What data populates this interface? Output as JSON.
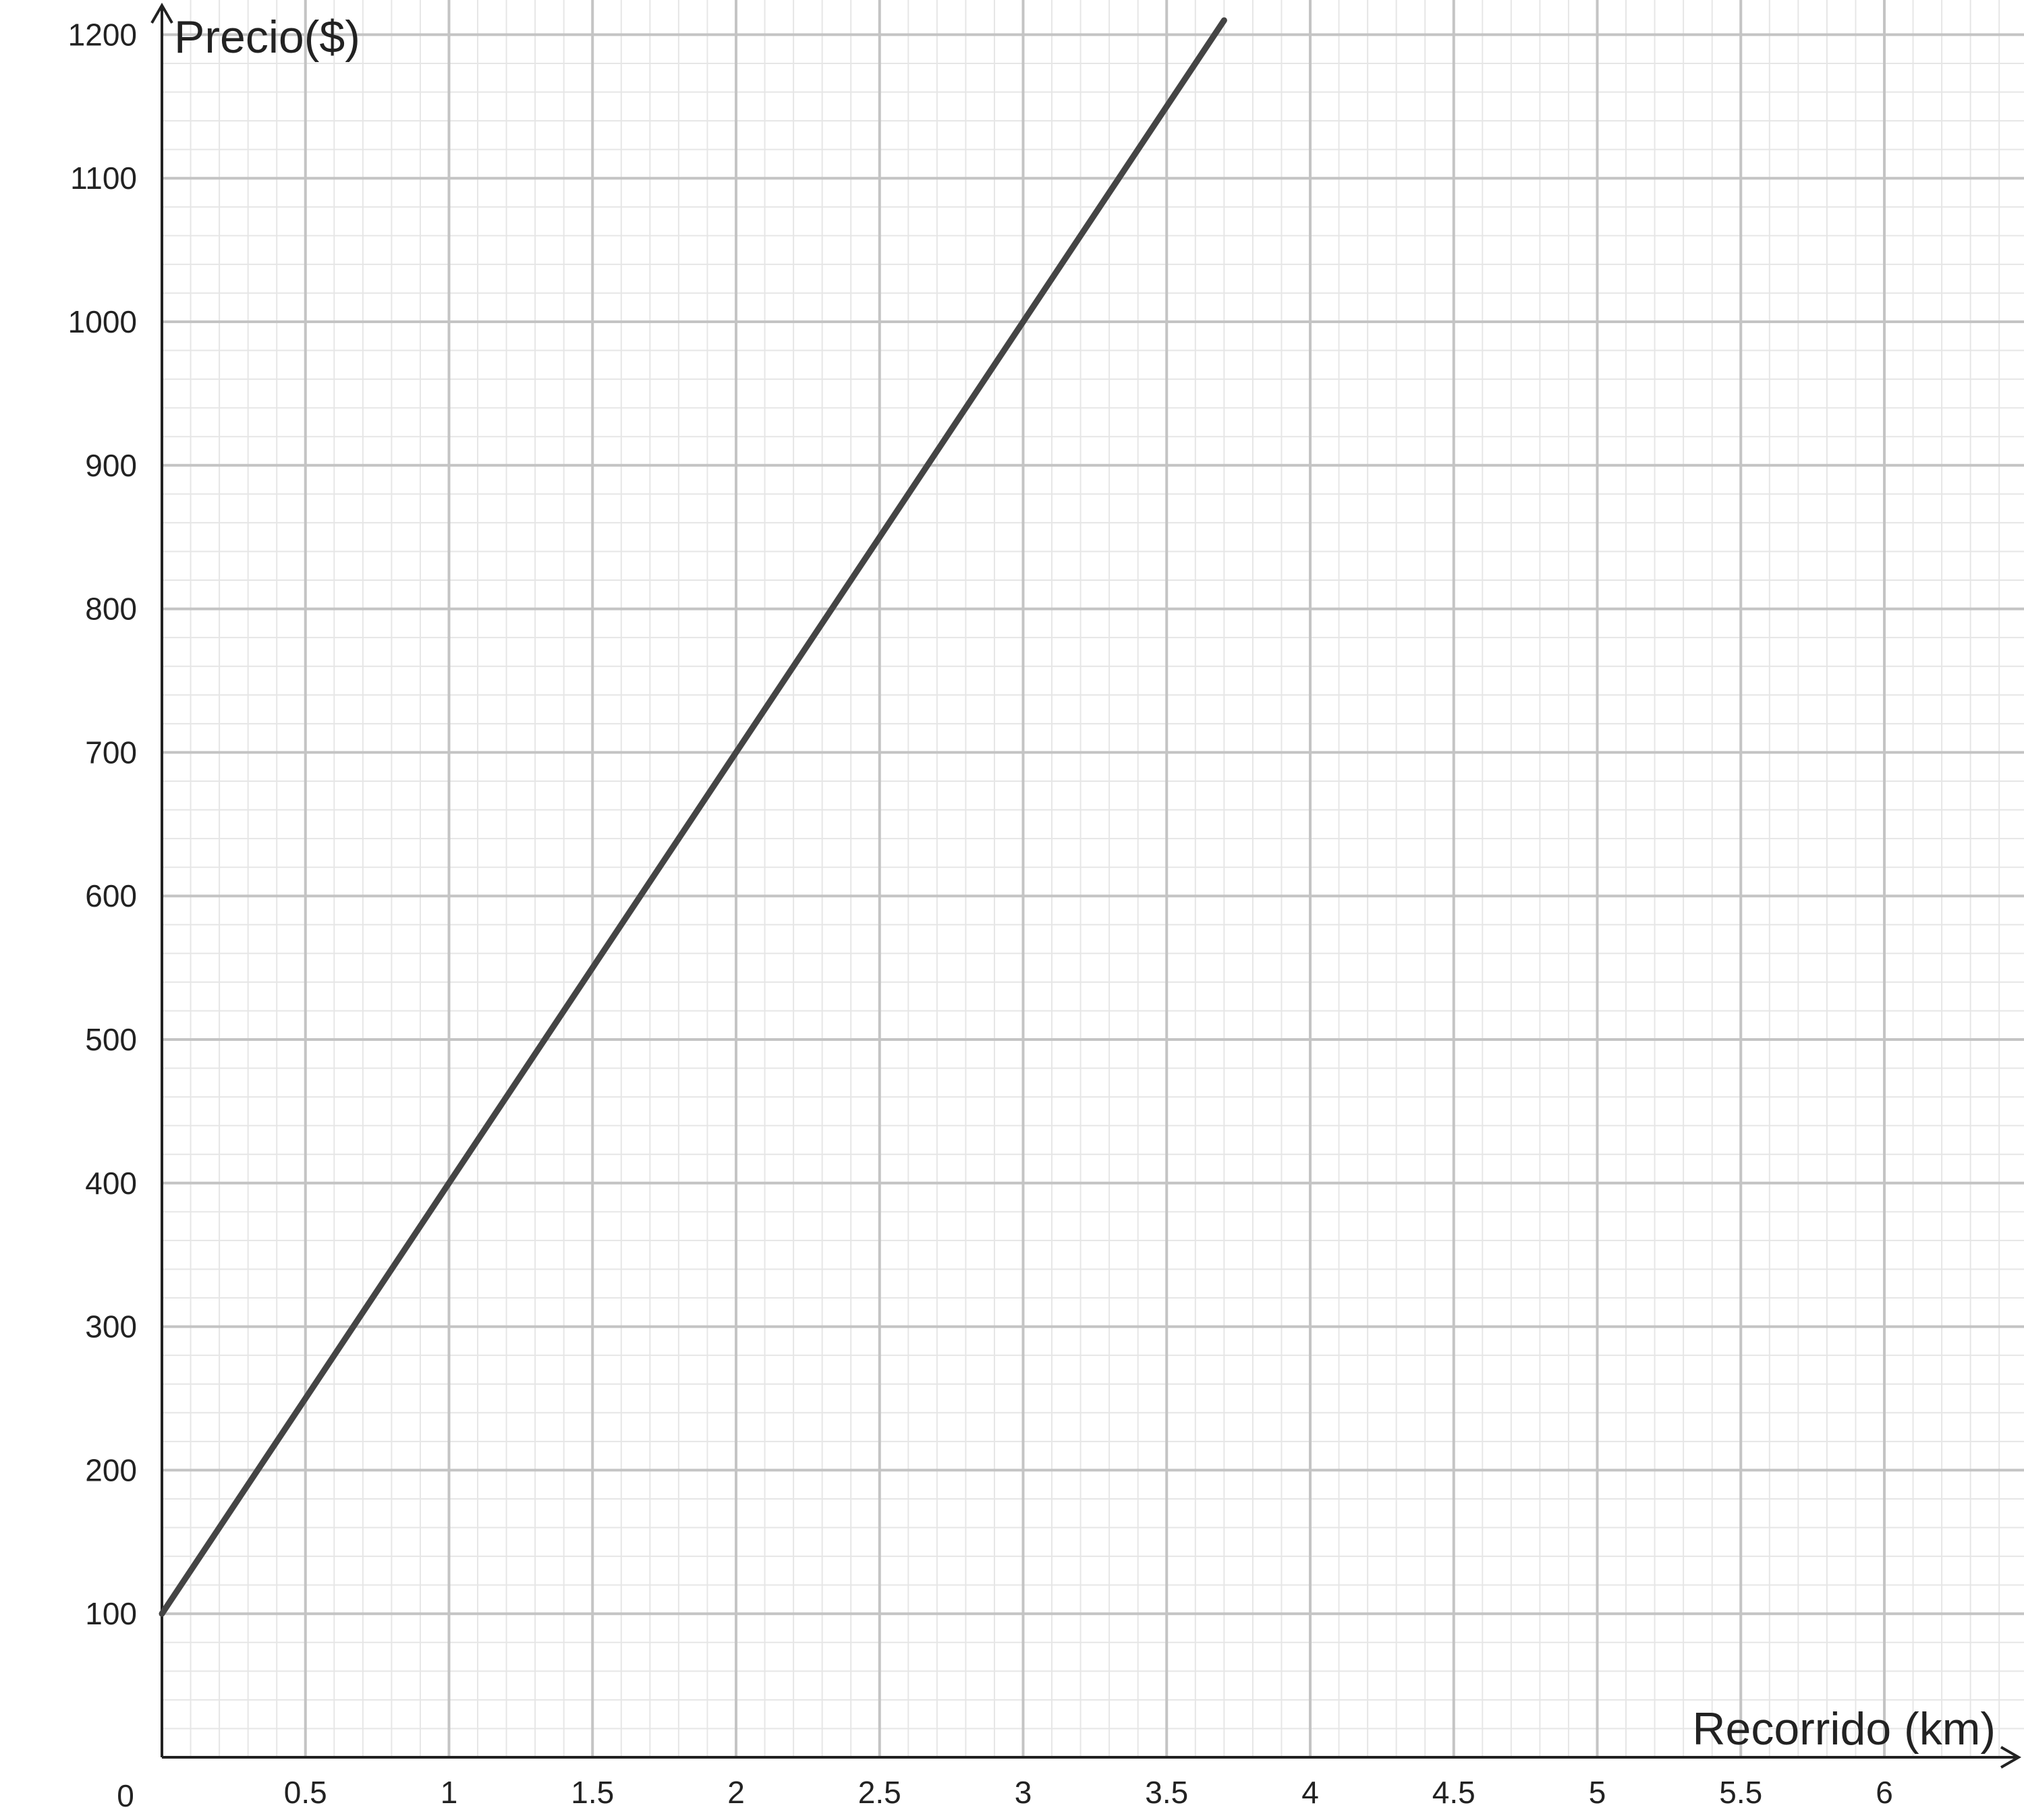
{
  "chart_data": {
    "type": "line",
    "title": "",
    "xlabel": "Recorrido (km)",
    "ylabel": "Precio($)",
    "xlim": [
      0,
      6.5
    ],
    "ylim": [
      0,
      1215
    ],
    "grid": true,
    "origin_label": "0",
    "x_ticks": [
      "0.5",
      "1",
      "1.5",
      "2",
      "2.5",
      "3",
      "3.5",
      "4",
      "4.5",
      "5",
      "5.5",
      "6"
    ],
    "y_ticks": [
      "100",
      "200",
      "300",
      "400",
      "500",
      "600",
      "700",
      "800",
      "900",
      "1000",
      "1100",
      "1200"
    ],
    "series": [
      {
        "x": [
          0,
          0.5,
          1,
          1.5,
          2,
          2.5,
          3,
          3.5,
          3.7
        ],
        "y": [
          100,
          250,
          400,
          550,
          700,
          850,
          1000,
          1150,
          1210
        ]
      }
    ],
    "colors": {
      "line": "#444444",
      "axis": "#222222",
      "major_grid": "#c4c4c4",
      "minor_grid": "#e6e6e6"
    }
  }
}
